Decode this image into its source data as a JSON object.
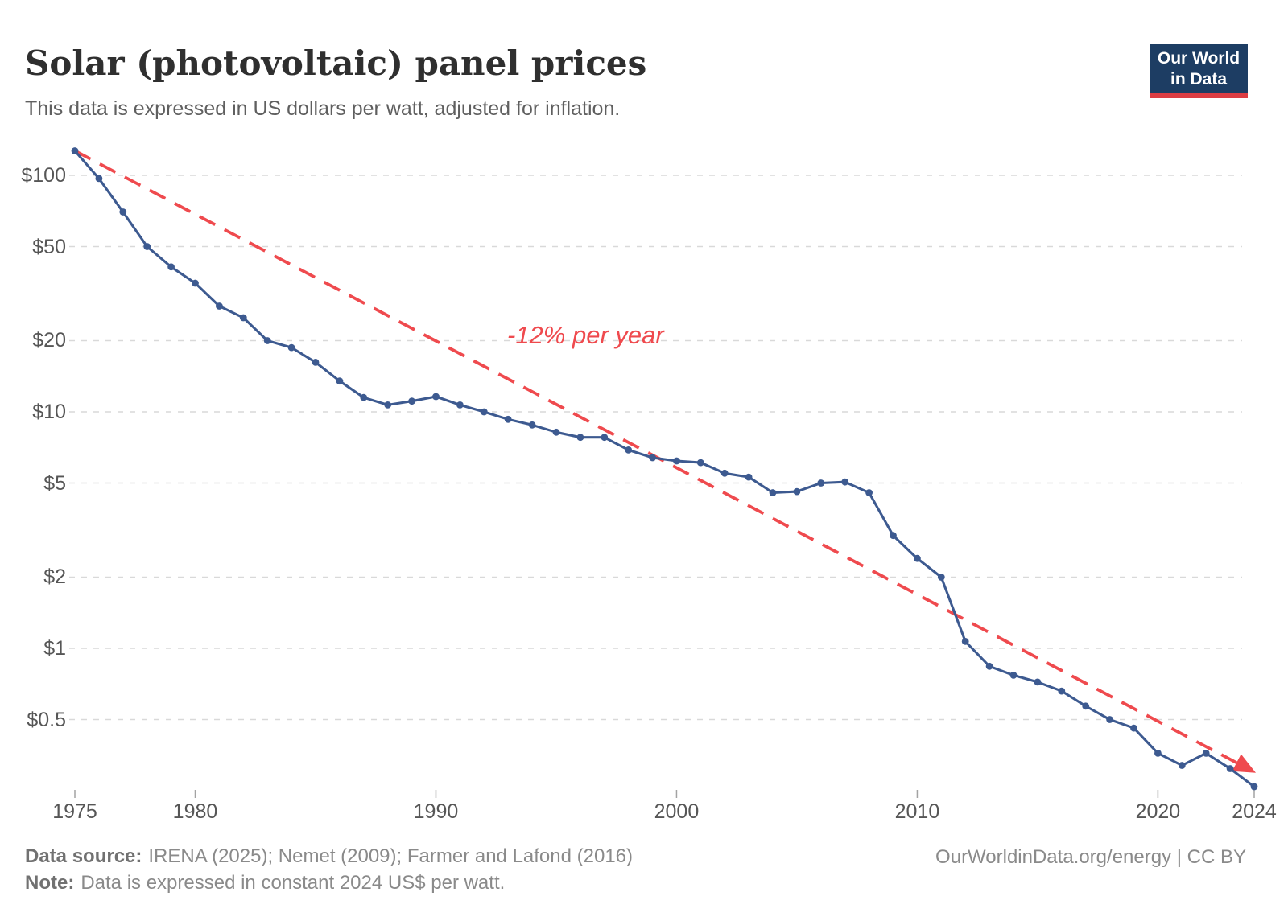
{
  "header": {
    "title": "Solar (photovoltaic) panel prices",
    "subtitle": "This data is expressed in US dollars per watt, adjusted for inflation."
  },
  "logo": {
    "line1": "Our World",
    "line2": "in Data",
    "bg_color": "#1d3d63",
    "bar_color": "#dc3d43",
    "text_color": "#ffffff"
  },
  "footer": {
    "source_label": "Data source:",
    "source_text": "IRENA (2025); Nemet (2009); Farmer and Lafond (2016)",
    "note_label": "Note:",
    "note_text": "Data is expressed in constant 2024 US$ per watt.",
    "credit": "OurWorldinData.org/energy | CC BY"
  },
  "chart_data": {
    "type": "line",
    "title": "Solar (photovoltaic) panel prices",
    "xlabel": "",
    "ylabel": "",
    "y_scale": "log",
    "ylim": [
      0.25,
      130
    ],
    "xlim": [
      1975,
      2024
    ],
    "grid": true,
    "legend": "none",
    "gridline_color": "#d9d9d9",
    "tick_color": "#a3a3a3",
    "axis_text_color": "#565656",
    "x": [
      1975,
      1976,
      1977,
      1978,
      1979,
      1980,
      1981,
      1982,
      1983,
      1984,
      1985,
      1986,
      1987,
      1988,
      1989,
      1990,
      1991,
      1992,
      1993,
      1994,
      1995,
      1996,
      1997,
      1998,
      1999,
      2000,
      2001,
      2002,
      2003,
      2004,
      2005,
      2006,
      2007,
      2008,
      2009,
      2010,
      2011,
      2012,
      2013,
      2014,
      2015,
      2016,
      2017,
      2018,
      2019,
      2020,
      2021,
      2022,
      2023,
      2024
    ],
    "series": [
      {
        "name": "Solar (photovoltaic) panel price (US$ per watt)",
        "color": "#3d5a90",
        "values": [
          127,
          97,
          70,
          50,
          41,
          35,
          28,
          25,
          20,
          18.7,
          16.2,
          13.5,
          11.5,
          10.7,
          11.1,
          11.6,
          10.7,
          10.0,
          9.3,
          8.8,
          8.2,
          7.8,
          7.8,
          6.9,
          6.4,
          6.2,
          6.1,
          5.5,
          5.3,
          4.55,
          4.6,
          5.0,
          5.05,
          4.55,
          3.0,
          2.4,
          2.0,
          1.07,
          0.84,
          0.77,
          0.72,
          0.66,
          0.57,
          0.5,
          0.46,
          0.36,
          0.32,
          0.36,
          0.31,
          0.26
        ]
      }
    ],
    "y_ticks": [
      {
        "label": "$100",
        "value": 100
      },
      {
        "label": "$50",
        "value": 50
      },
      {
        "label": "$20",
        "value": 20
      },
      {
        "label": "$10",
        "value": 10
      },
      {
        "label": "$5",
        "value": 5
      },
      {
        "label": "$2",
        "value": 2
      },
      {
        "label": "$1",
        "value": 1
      },
      {
        "label": "$0.5",
        "value": 0.5
      }
    ],
    "x_ticks": [
      1975,
      1980,
      1990,
      2000,
      2010,
      2020,
      2024
    ],
    "trend": {
      "label": "-12% per year",
      "color": "#ef4a4e",
      "start_year": 1975,
      "start_value": 127,
      "end_year": 2024,
      "end_value": 0.3
    }
  }
}
